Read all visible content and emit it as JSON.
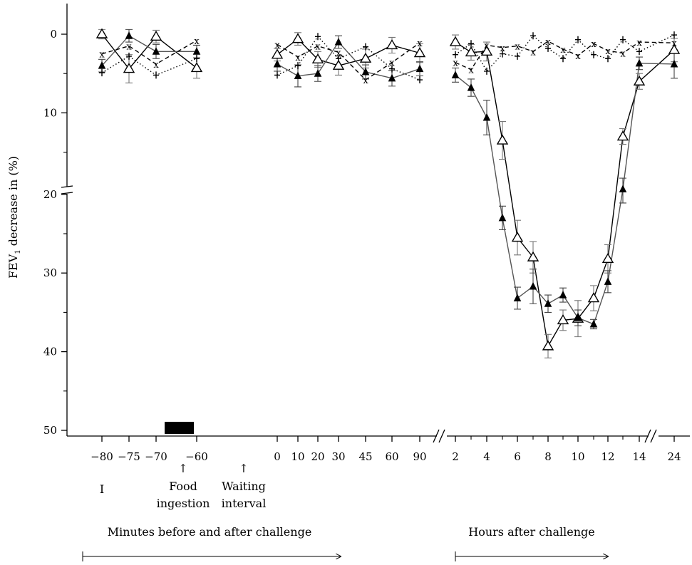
{
  "chart_data": {
    "type": "line",
    "title": "",
    "ylabel": "FEV",
    "ylabel_sub": "1",
    "ylabel_rest": " decrease in (%)",
    "ylim": [
      0,
      50
    ],
    "y_inverted": true,
    "y_ticks": [
      "0",
      "10",
      "20",
      "30",
      "40",
      "50"
    ],
    "y_axis_break_at": 20,
    "x_ticks": [
      "−80",
      "−75",
      "−70",
      "−60",
      "0",
      "10",
      "20",
      "30",
      "45",
      "60",
      "90",
      "2",
      "4",
      "6",
      "8",
      "10",
      "12",
      "14",
      "24"
    ],
    "x_axis_breaks": [
      "between 90 min and 2 h",
      "between 14 h and 24 h"
    ],
    "segments": [
      {
        "unit": "minutes",
        "x": [
          -80,
          -75,
          -70,
          -60
        ]
      },
      {
        "unit": "minutes",
        "x": [
          0,
          10,
          20,
          30,
          45,
          60,
          90
        ]
      },
      {
        "unit": "hours",
        "x": [
          2,
          3,
          4,
          5,
          6,
          7,
          8,
          9,
          10,
          11,
          12,
          13,
          14,
          24
        ]
      }
    ],
    "series": [
      {
        "marker": "open-triangle",
        "color": "#000000",
        "line": "solid",
        "values": [
          [
            0,
            4.4,
            0.3,
            4.3
          ],
          [
            2.6,
            0.6,
            3.2,
            4.0,
            3.1,
            1.4,
            2.4
          ],
          [
            1.0,
            2.3,
            2.2,
            13.5,
            25.5,
            28.0,
            39.3,
            36.0,
            35.8,
            33.2,
            28.2,
            13.0,
            6.0,
            2.0
          ]
        ],
        "errors": [
          [
            0.6,
            1.8,
            0.8,
            1.3
          ],
          [
            0.8,
            0.8,
            1.0,
            1.2,
            1.2,
            1.0,
            1.2
          ],
          [
            0.9,
            1.0,
            1.2,
            2.4,
            2.2,
            2.0,
            1.5,
            1.3,
            2.3,
            1.6,
            1.8,
            1.0,
            1.0,
            1.5
          ]
        ]
      },
      {
        "marker": "filled-triangle",
        "color": "#555555",
        "line": "solid",
        "values": [
          [
            4.0,
            0.2,
            2.2,
            2.2
          ],
          [
            3.8,
            5.3,
            5.0,
            1.0,
            4.8,
            5.6,
            4.4
          ],
          [
            5.2,
            6.8,
            10.6,
            23.0,
            33.2,
            31.7,
            33.9,
            32.8,
            35.7,
            36.5,
            31.1,
            19.7,
            3.7,
            3.8
          ]
        ],
        "errors": [
          [
            0.8,
            0.8,
            0.9,
            0.8
          ],
          [
            0.9,
            1.4,
            1.0,
            0.8,
            0.9,
            1.0,
            0.9
          ],
          [
            0.9,
            1.1,
            2.2,
            1.5,
            1.4,
            2.2,
            1.1,
            0.9,
            1.0,
            0.6,
            1.4,
            1.4,
            0.8,
            1.8
          ]
        ]
      },
      {
        "marker": "x",
        "color": "#000000",
        "line": "dashed",
        "values": [
          [
            2.5,
            1.5,
            3.8,
            0.8
          ],
          [
            1.3,
            2.9,
            1.5,
            2.3,
            5.8,
            3.6,
            1.1
          ],
          [
            3.6,
            4.5,
            1.4,
            1.7,
            1.5,
            2.2,
            0.9,
            1.9,
            2.7,
            1.2,
            2.1,
            2.4,
            1.0,
            1.1
          ]
        ],
        "errors": []
      },
      {
        "marker": "plus",
        "color": "#000000",
        "line": "dotted",
        "values": [
          [
            4.9,
            2.8,
            5.2,
            3.1
          ],
          [
            5.2,
            4.0,
            0.3,
            3.1,
            1.6,
            4.4,
            5.8
          ],
          [
            2.6,
            1.2,
            4.7,
            2.5,
            2.8,
            0.2,
            1.8,
            3.1,
            0.7,
            2.6,
            3.1,
            0.7,
            2.2,
            0.1
          ]
        ],
        "errors": []
      }
    ]
  },
  "annotations": {
    "phase_marker": "I",
    "food_arrow": "↑",
    "food_label_1": "Food",
    "food_label_2": "ingestion",
    "waiting_arrow": "↑",
    "waiting_label_1": "Waiting",
    "waiting_label_2": "interval",
    "minutes_label": "Minutes before and after challenge",
    "hours_label": "Hours after challenge"
  }
}
